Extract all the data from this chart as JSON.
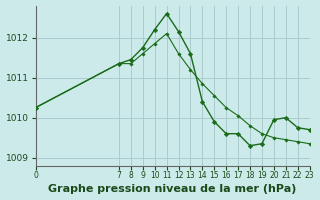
{
  "title": "Graphe pression niveau de la mer (hPa)",
  "background_color": "#cceaea",
  "grid_color": "#aacccc",
  "line_color": "#1a6b1a",
  "marker_color": "#1a6b1a",
  "xlim": [
    0,
    23
  ],
  "ylim": [
    1008.8,
    1012.8
  ],
  "yticks": [
    1009,
    1010,
    1011,
    1012
  ],
  "xticks": [
    0,
    7,
    8,
    9,
    10,
    11,
    12,
    13,
    14,
    15,
    16,
    17,
    18,
    19,
    20,
    21,
    22,
    23
  ],
  "x_line1": [
    0,
    7,
    8,
    9,
    10,
    11,
    12,
    13,
    14,
    15,
    16,
    17,
    18,
    19,
    20,
    21,
    22,
    23
  ],
  "y_line1": [
    1010.25,
    1011.35,
    1011.45,
    1011.75,
    1012.2,
    1012.6,
    1012.15,
    1011.6,
    1010.4,
    1009.9,
    1009.6,
    1009.6,
    1009.3,
    1009.35,
    1009.95,
    1010.0,
    1009.75,
    1009.7
  ],
  "x_line2": [
    0,
    7,
    8,
    9,
    10,
    11,
    12,
    13,
    14,
    15,
    16,
    17,
    18,
    19,
    20,
    21,
    22,
    23
  ],
  "y_line2": [
    1010.25,
    1011.35,
    1011.35,
    1011.6,
    1011.85,
    1012.1,
    1011.6,
    1011.2,
    1010.85,
    1010.55,
    1010.25,
    1010.05,
    1009.8,
    1009.6,
    1009.5,
    1009.45,
    1009.4,
    1009.35
  ],
  "tick_fontsize": 7,
  "xlabel_fontsize": 8
}
